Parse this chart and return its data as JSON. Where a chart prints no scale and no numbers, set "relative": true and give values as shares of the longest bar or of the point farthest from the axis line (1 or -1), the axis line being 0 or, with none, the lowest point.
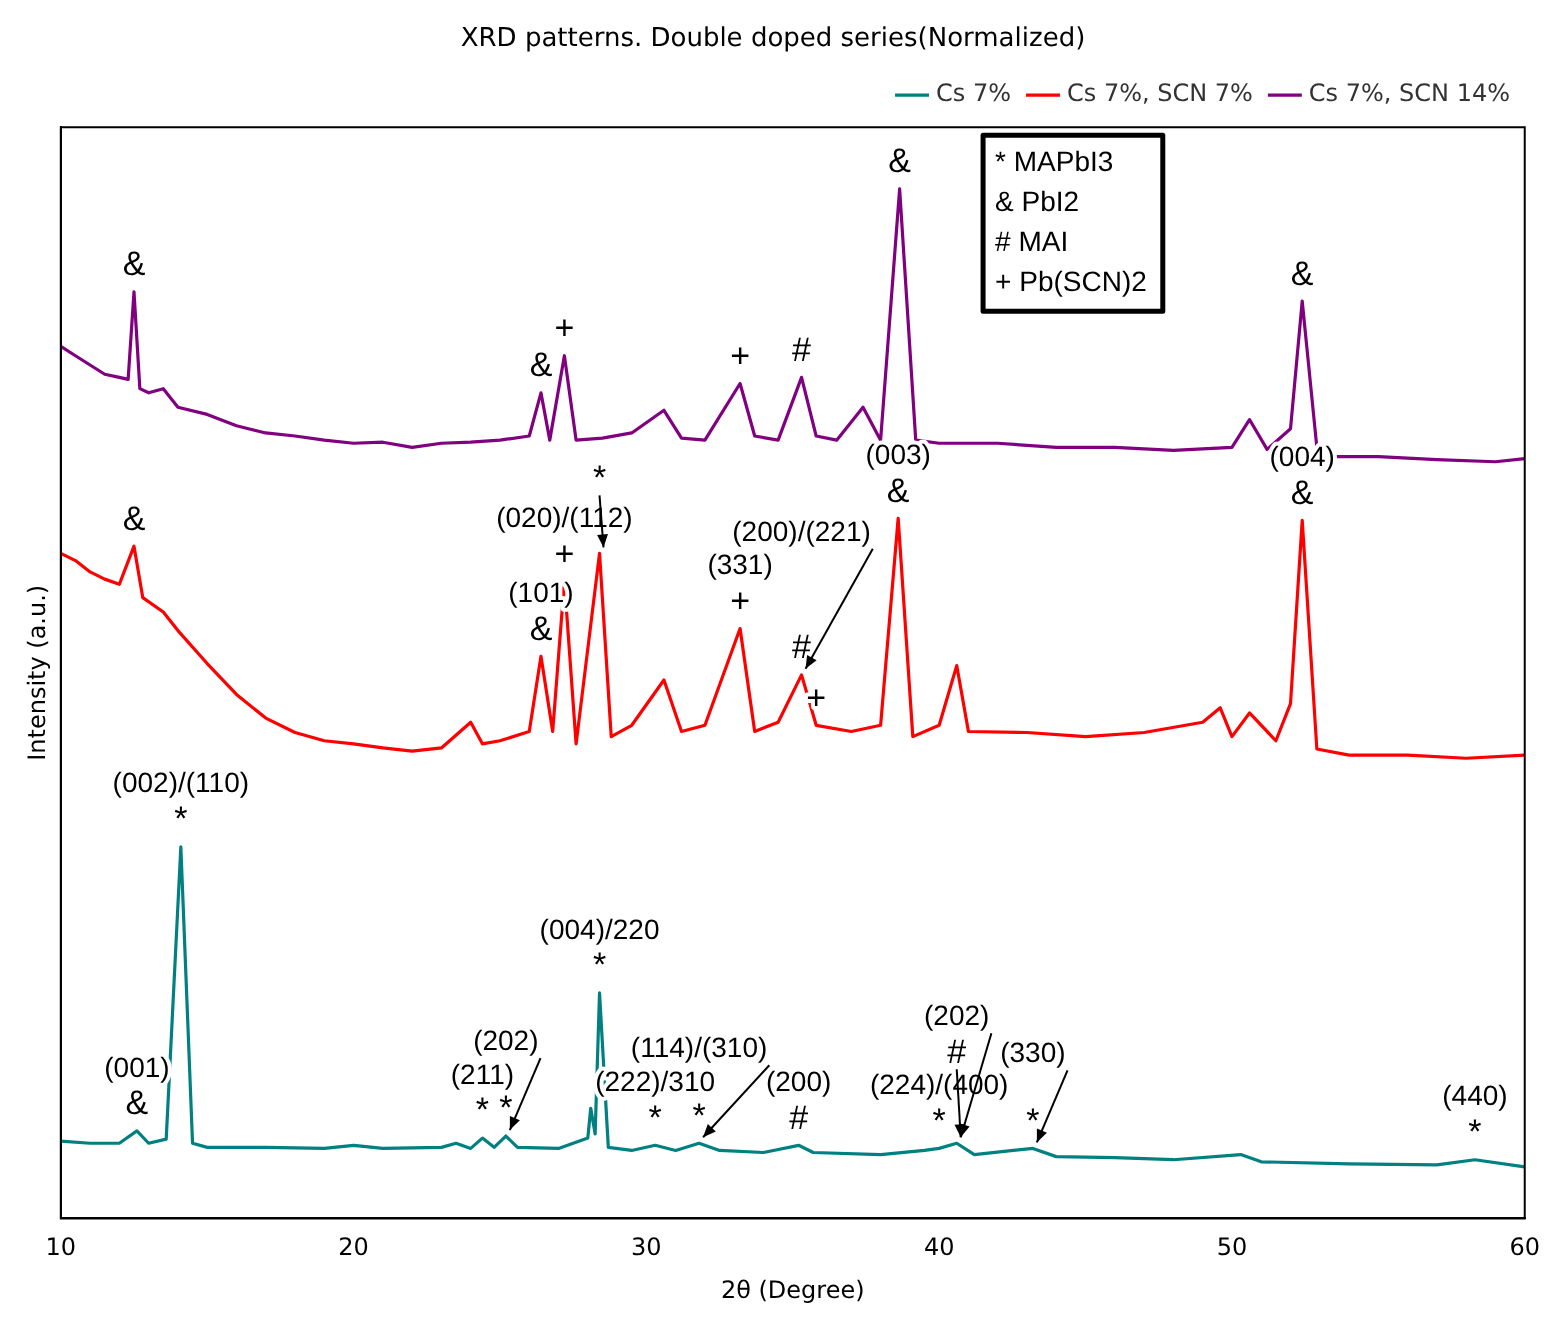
{
  "chart_data": {
    "type": "line",
    "title": "XRD patterns. Double doped series(Normalized)",
    "xlabel": "2θ (Degree)",
    "ylabel": "Intensity (a.u.)",
    "relative": true,
    "xlim": [
      10,
      60
    ],
    "xticks": [
      10,
      20,
      30,
      40,
      50,
      60
    ],
    "grid": false,
    "legend": "top right",
    "marker": "none",
    "line_style": "solid",
    "series": [
      {
        "name": "Cs 7%",
        "color": "#008080",
        "x": [
          10,
          11,
          12,
          12.6,
          13,
          13.6,
          14.1,
          14.5,
          15,
          17,
          19,
          20,
          21,
          23,
          23.5,
          24,
          24.4,
          24.8,
          25.2,
          25.6,
          27,
          28,
          28.1,
          28.25,
          28.4,
          28.7,
          29.5,
          30.3,
          31,
          31.8,
          32.5,
          34,
          35.2,
          35.7,
          38,
          39.5,
          40,
          40.6,
          41.2,
          43.2,
          44,
          46,
          48,
          50.3,
          51,
          54,
          57,
          58.3,
          60
        ],
        "values": [
          0.075,
          0.073,
          0.073,
          0.085,
          0.073,
          0.077,
          0.361,
          0.073,
          0.069,
          0.069,
          0.068,
          0.071,
          0.068,
          0.069,
          0.073,
          0.068,
          0.078,
          0.069,
          0.08,
          0.069,
          0.068,
          0.078,
          0.107,
          0.082,
          0.219,
          0.069,
          0.066,
          0.071,
          0.066,
          0.073,
          0.066,
          0.064,
          0.071,
          0.064,
          0.062,
          0.066,
          0.068,
          0.073,
          0.062,
          0.068,
          0.06,
          0.059,
          0.057,
          0.062,
          0.055,
          0.053,
          0.052,
          0.057,
          0.05
        ]
      },
      {
        "name": "Cs 7%, SCN 7%",
        "color": "#ff0000",
        "x": [
          10,
          10.5,
          11,
          11.5,
          12,
          12.5,
          12.8,
          13.5,
          14,
          15,
          16,
          17,
          18,
          19,
          20,
          21,
          22,
          23,
          24,
          24.4,
          25,
          26,
          26.4,
          26.8,
          27.2,
          27.6,
          28.4,
          28.8,
          29.5,
          30.6,
          31.2,
          32,
          33.2,
          33.7,
          34.5,
          35.3,
          35.8,
          37,
          38,
          38.6,
          39.1,
          40,
          40.6,
          41,
          43,
          45,
          47,
          49,
          49.6,
          50,
          50.6,
          51.5,
          52,
          52.4,
          52.9,
          54,
          56,
          58,
          60
        ],
        "values": [
          0.646,
          0.639,
          0.628,
          0.621,
          0.616,
          0.653,
          0.603,
          0.589,
          0.571,
          0.539,
          0.509,
          0.486,
          0.472,
          0.464,
          0.461,
          0.457,
          0.454,
          0.457,
          0.482,
          0.461,
          0.464,
          0.473,
          0.546,
          0.473,
          0.619,
          0.461,
          0.646,
          0.468,
          0.479,
          0.523,
          0.473,
          0.479,
          0.573,
          0.473,
          0.482,
          0.528,
          0.479,
          0.473,
          0.479,
          0.68,
          0.468,
          0.479,
          0.537,
          0.473,
          0.472,
          0.468,
          0.472,
          0.482,
          0.496,
          0.468,
          0.491,
          0.464,
          0.5,
          0.678,
          0.456,
          0.45,
          0.45,
          0.447,
          0.45
        ]
      },
      {
        "name": "Cs 7%, SCN 14%",
        "color": "#800080",
        "x": [
          10,
          10.5,
          11,
          11.5,
          12,
          12.3,
          12.5,
          12.7,
          13,
          13.5,
          14,
          15,
          16,
          17,
          18,
          19,
          20,
          21,
          22,
          23,
          24,
          25,
          26,
          26.4,
          26.7,
          27.2,
          27.6,
          28.5,
          29.5,
          30.6,
          31.2,
          32,
          33.2,
          33.7,
          34.5,
          35.3,
          35.8,
          36.5,
          37.4,
          38,
          38.65,
          39.2,
          40,
          42,
          44,
          46,
          48,
          50,
          50.6,
          51.2,
          52,
          52.4,
          52.9,
          53.5,
          55,
          57,
          59,
          60
        ],
        "values": [
          0.847,
          0.838,
          0.829,
          0.82,
          0.817,
          0.815,
          0.9,
          0.806,
          0.802,
          0.806,
          0.788,
          0.781,
          0.77,
          0.763,
          0.76,
          0.756,
          0.753,
          0.754,
          0.749,
          0.753,
          0.754,
          0.756,
          0.76,
          0.802,
          0.756,
          0.838,
          0.756,
          0.758,
          0.763,
          0.785,
          0.758,
          0.756,
          0.811,
          0.76,
          0.756,
          0.817,
          0.76,
          0.756,
          0.788,
          0.756,
          1,
          0.756,
          0.753,
          0.753,
          0.749,
          0.749,
          0.746,
          0.749,
          0.776,
          0.747,
          0.767,
          0.891,
          0.749,
          0.74,
          0.74,
          0.737,
          0.735,
          0.738
        ]
      }
    ],
    "annotations": [
      "* MAPbI3",
      "& PbI2",
      "# MAI",
      "+ Pb(SCN)2",
      {
        "text": "&",
        "x": 12.5,
        "y": 0.9
      },
      {
        "text": "&",
        "x": 26.4,
        "y": 0.802
      },
      {
        "text": "+",
        "x": 27.2,
        "y": 0.838
      },
      {
        "text": "+",
        "x": 33.2,
        "y": 0.811
      },
      {
        "text": "#",
        "x": 35.3,
        "y": 0.817
      },
      {
        "text": "&",
        "x": 38.65,
        "y": 1
      },
      {
        "text": "&",
        "x": 52.4,
        "y": 0.891
      },
      {
        "text": "&",
        "x": 12.5,
        "y": 0.653
      },
      {
        "text": "+",
        "x": 27.2,
        "y": 0.619
      },
      {
        "text": "(020)/(112)",
        "x": 27.2,
        "y": 0.619
      },
      {
        "text": "*",
        "x": 28.4,
        "y": 0.646
      },
      {
        "text": "&",
        "x": 26.4,
        "y": 0.546
      },
      {
        "text": "(101)",
        "x": 26.4,
        "y": 0.546
      },
      {
        "text": "+",
        "x": 33.2,
        "y": 0.573
      },
      {
        "text": "(331)",
        "x": 33.2,
        "y": 0.573
      },
      {
        "text": "#",
        "x": 35.3,
        "y": 0.528
      },
      {
        "text": "(200)/(221)",
        "x": 35.3,
        "y": 0.528
      },
      {
        "text": "+",
        "x": 35.8,
        "y": 0.479
      },
      {
        "text": "&",
        "x": 38.6,
        "y": 0.68
      },
      {
        "text": "(003)",
        "x": 38.6,
        "y": 0.68
      },
      {
        "text": "&",
        "x": 52.4,
        "y": 0.678
      },
      {
        "text": "(004)",
        "x": 52.4,
        "y": 0.678
      },
      {
        "text": "*",
        "x": 14.1,
        "y": 0.361
      },
      {
        "text": "(002)/(110)",
        "x": 14.1,
        "y": 0.361
      },
      {
        "text": "&",
        "x": 12.6,
        "y": 0.085
      },
      {
        "text": "(001)",
        "x": 12.6,
        "y": 0.085
      },
      {
        "text": "*",
        "x": 24.4,
        "y": 0.078
      },
      {
        "text": "(211)",
        "x": 24.4,
        "y": 0.078
      },
      {
        "text": "*",
        "x": 25.2,
        "y": 0.08
      },
      {
        "text": "(202)",
        "x": 25.2,
        "y": 0.08
      },
      {
        "text": "*",
        "x": 28.4,
        "y": 0.219
      },
      {
        "text": "(004)/220",
        "x": 28.4,
        "y": 0.219
      },
      {
        "text": "*",
        "x": 30.3,
        "y": 0.071
      },
      {
        "text": "(222)/310",
        "x": 30.3,
        "y": 0.071
      },
      {
        "text": "*",
        "x": 31.8,
        "y": 0.073
      },
      {
        "text": "(114)/(310)",
        "x": 31.8,
        "y": 0.073
      },
      {
        "text": "#",
        "x": 35.2,
        "y": 0.071
      },
      {
        "text": "(200)",
        "x": 35.2,
        "y": 0.071
      },
      {
        "text": "*",
        "x": 40,
        "y": 0.068
      },
      {
        "text": "(224)/(400)",
        "x": 40,
        "y": 0.068
      },
      {
        "text": "#",
        "x": 40.6,
        "y": 0.073
      },
      {
        "text": "(202)",
        "x": 40.6,
        "y": 0.073
      },
      {
        "text": "*",
        "x": 43.2,
        "y": 0.068
      },
      {
        "text": "(330)",
        "x": 43.2,
        "y": 0.068
      },
      {
        "text": "*",
        "x": 58.3,
        "y": 0.057
      },
      {
        "text": "(440)",
        "x": 58.3,
        "y": 0.057
      }
    ]
  }
}
